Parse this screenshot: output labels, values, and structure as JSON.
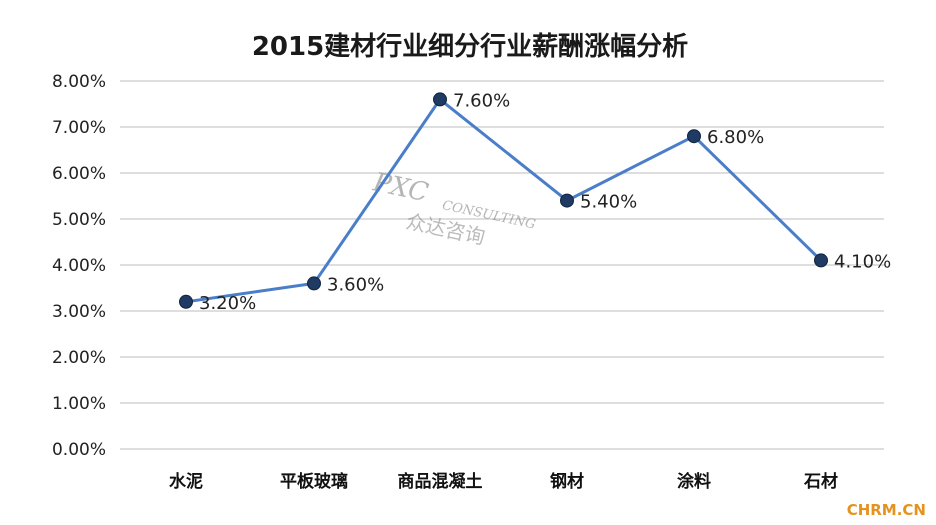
{
  "chart_data": {
    "type": "line",
    "title": "2015建材行业细分行业薪酬涨幅分析",
    "categories": [
      "水泥",
      "平板玻璃",
      "商品混凝土",
      "钢材",
      "涂料",
      "石材"
    ],
    "values": [
      3.2,
      3.6,
      7.6,
      5.4,
      6.8,
      4.1
    ],
    "data_labels": [
      "3.20%",
      "3.60%",
      "7.60%",
      "5.40%",
      "6.80%",
      "4.10%"
    ],
    "y_ticks": [
      0,
      1,
      2,
      3,
      4,
      5,
      6,
      7,
      8
    ],
    "y_tick_labels": [
      "0.00%",
      "1.00%",
      "2.00%",
      "3.00%",
      "4.00%",
      "5.00%",
      "6.00%",
      "7.00%",
      "8.00%"
    ],
    "ylim": [
      0,
      8
    ],
    "grid": true,
    "legend": "none",
    "line_color": "#4a7ec9",
    "marker_color": "#1f3a63"
  },
  "watermark": {
    "line1": "PXC",
    "line2": "CONSULTING",
    "line3": "众达咨询"
  },
  "corner_text": "CHRM.CN"
}
